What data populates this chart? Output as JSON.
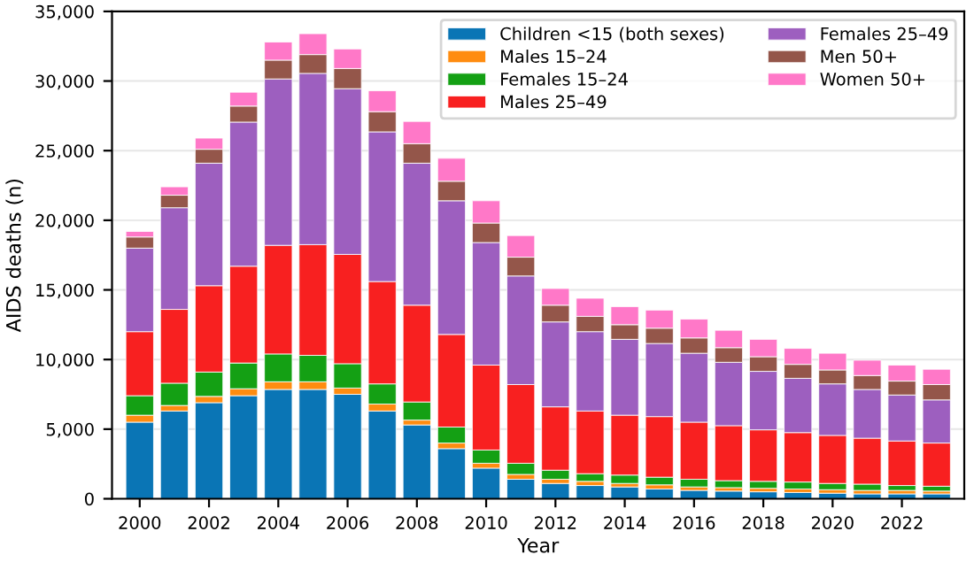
{
  "chart_data": {
    "type": "bar",
    "stacked": true,
    "xlabel": "Year",
    "ylabel": "AIDS deaths (n)",
    "categories": [
      "2000",
      null,
      "2002",
      null,
      "2004",
      null,
      "2006",
      null,
      "2008",
      null,
      "2010",
      null,
      "2012",
      null,
      "2014",
      null,
      "2016",
      null,
      "2018",
      null,
      "2020",
      null,
      "2022",
      null
    ],
    "series": [
      {
        "name": "Children <15 (both sexes)",
        "color": "#0a75b5",
        "values": [
          5500,
          6300,
          6900,
          7400,
          7850,
          7850,
          7500,
          6300,
          5300,
          3600,
          2200,
          1400,
          1100,
          950,
          850,
          700,
          600,
          550,
          500,
          450,
          400,
          350,
          350,
          350
        ]
      },
      {
        "name": "Males 15–24",
        "color": "#ff8c10",
        "values": [
          500,
          400,
          450,
          500,
          550,
          550,
          450,
          500,
          350,
          400,
          350,
          350,
          300,
          300,
          250,
          300,
          250,
          250,
          250,
          250,
          250,
          250,
          250,
          200
        ]
      },
      {
        "name": "Females 15–24",
        "color": "#14a014",
        "values": [
          1400,
          1600,
          1750,
          1850,
          2000,
          1900,
          1750,
          1450,
          1300,
          1150,
          950,
          800,
          650,
          550,
          600,
          550,
          550,
          500,
          500,
          500,
          450,
          450,
          350,
          350
        ]
      },
      {
        "name": "Males 25–49",
        "color": "#f82020",
        "values": [
          4600,
          5300,
          6200,
          6950,
          7800,
          7950,
          7850,
          7350,
          6950,
          6650,
          6100,
          5650,
          4550,
          4500,
          4300,
          4350,
          4100,
          3950,
          3700,
          3550,
          3450,
          3300,
          3200,
          3100
        ]
      },
      {
        "name": "Females 25–49",
        "color": "#9d5fbf",
        "values": [
          6000,
          7300,
          8800,
          10350,
          11950,
          12300,
          11900,
          10750,
          10200,
          9600,
          8800,
          7800,
          6100,
          5700,
          5450,
          5250,
          4950,
          4550,
          4200,
          3900,
          3700,
          3500,
          3300,
          3100
        ]
      },
      {
        "name": "Men 50+",
        "color": "#94564a",
        "values": [
          800,
          900,
          1000,
          1150,
          1350,
          1350,
          1450,
          1450,
          1400,
          1400,
          1400,
          1350,
          1200,
          1100,
          1050,
          1100,
          1100,
          1050,
          1050,
          1000,
          1000,
          1000,
          1000,
          1100
        ]
      },
      {
        "name": "Women 50+",
        "color": "#ff78c8",
        "values": [
          400,
          600,
          800,
          1000,
          1300,
          1500,
          1400,
          1500,
          1600,
          1650,
          1600,
          1550,
          1200,
          1300,
          1300,
          1300,
          1350,
          1250,
          1250,
          1150,
          1200,
          1100,
          1150,
          1100
        ]
      }
    ],
    "ylim": [
      0,
      35000
    ],
    "yticks": [
      {
        "value": 0,
        "label": "0"
      },
      {
        "value": 5000,
        "label": "5,000"
      },
      {
        "value": 10000,
        "label": "10,000"
      },
      {
        "value": 15000,
        "label": "15,000"
      },
      {
        "value": 20000,
        "label": "20,000"
      },
      {
        "value": 25000,
        "label": "25,000"
      },
      {
        "value": 30000,
        "label": "30,000"
      },
      {
        "value": 35000,
        "label": "35,000"
      }
    ],
    "grid": "y",
    "legend": "top right"
  }
}
